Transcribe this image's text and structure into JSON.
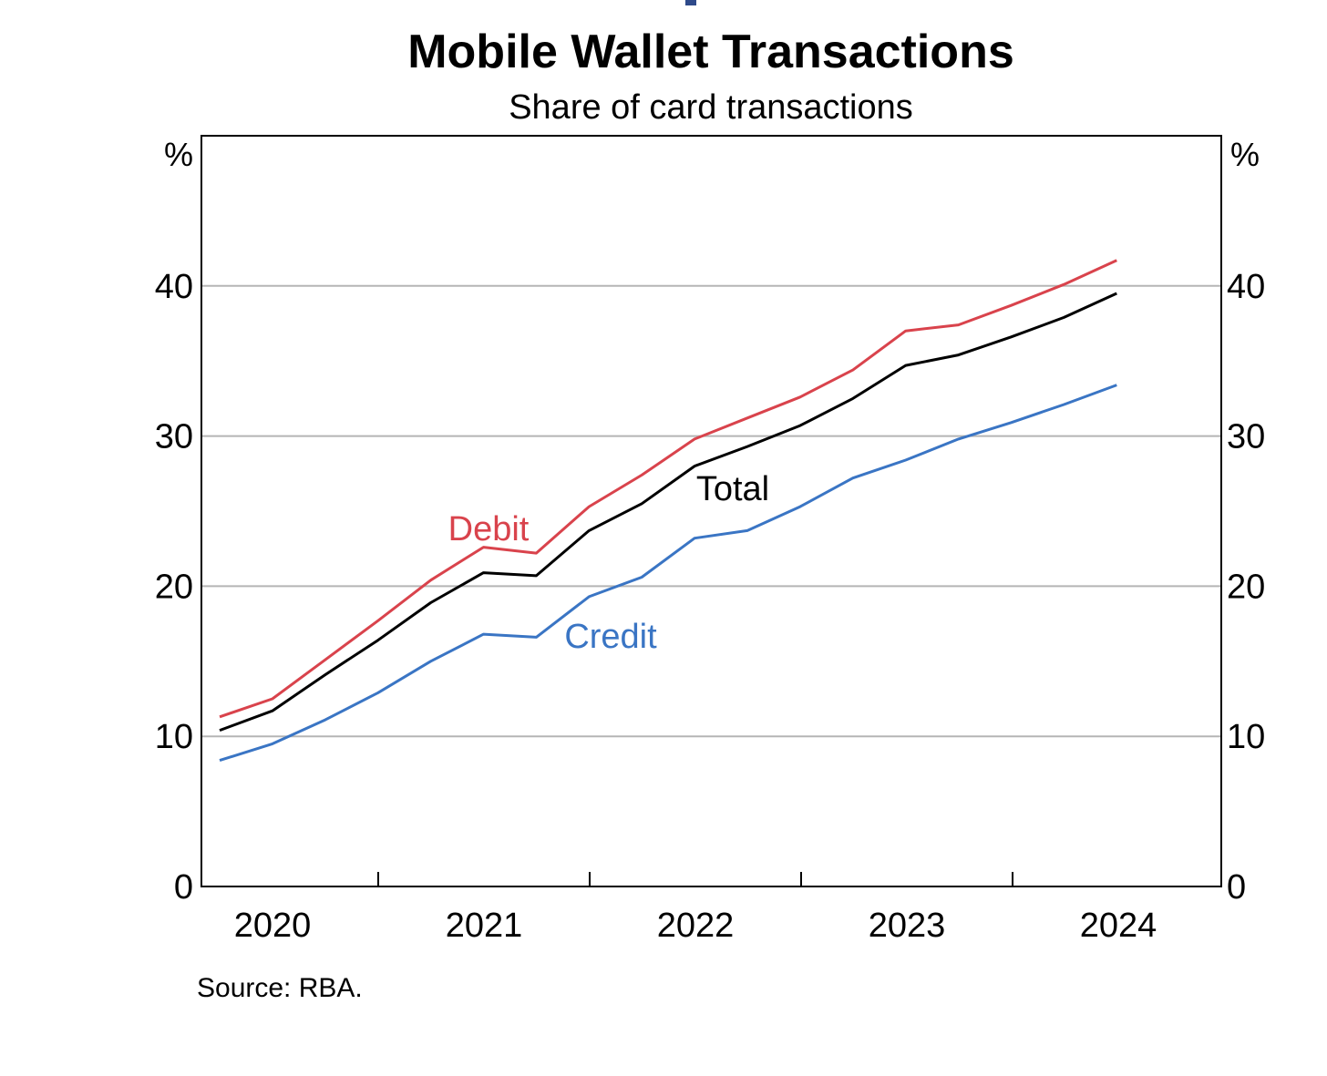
{
  "chart_data": {
    "type": "line",
    "title": "Mobile Wallet Transactions",
    "subtitle": "Share of card transactions",
    "y_unit_left": "%",
    "y_unit_right": "%",
    "source": "Source: RBA.",
    "ylim": [
      0,
      50
    ],
    "yticks": [
      0,
      10,
      20,
      30,
      40
    ],
    "ytick_labels": [
      "0",
      "10",
      "20",
      "30",
      "40"
    ],
    "x_year_labels": [
      "2020",
      "2021",
      "2022",
      "2023",
      "2024"
    ],
    "grid": true,
    "series": [
      {
        "name": "Debit",
        "color": "#d9434c",
        "values": [
          11.3,
          12.5,
          15.1,
          17.7,
          20.4,
          22.6,
          22.2,
          25.3,
          27.4,
          29.8,
          31.2,
          32.6,
          34.4,
          37.0,
          37.4,
          38.7,
          40.1,
          41.7
        ]
      },
      {
        "name": "Total",
        "color": "#000000",
        "values": [
          10.4,
          11.7,
          14.1,
          16.4,
          18.9,
          20.9,
          20.7,
          23.7,
          25.5,
          28.0,
          29.3,
          30.7,
          32.5,
          34.7,
          35.4,
          36.6,
          37.9,
          39.5
        ]
      },
      {
        "name": "Credit",
        "color": "#3a75c4",
        "values": [
          8.4,
          9.5,
          11.1,
          12.9,
          15.0,
          16.8,
          16.6,
          19.3,
          20.6,
          23.2,
          23.7,
          25.3,
          27.2,
          28.4,
          29.8,
          30.9,
          32.1,
          33.4
        ]
      }
    ]
  }
}
